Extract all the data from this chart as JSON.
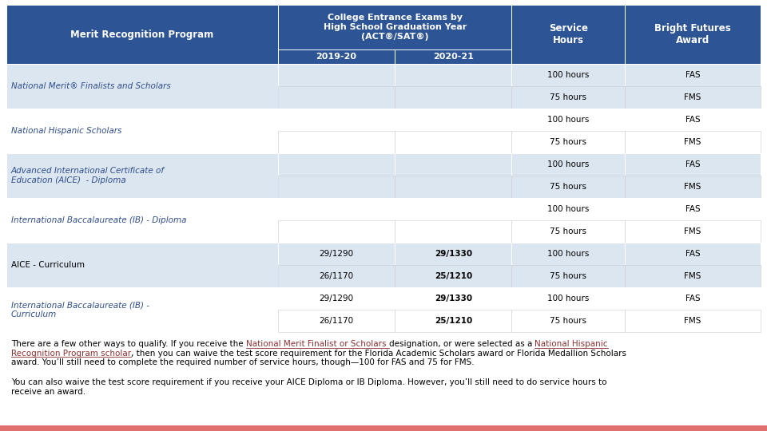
{
  "header_bg": "#2d5494",
  "header_text_color": "#ffffff",
  "row_bg_light": "#dce6f1",
  "row_bg_white": "#ffffff",
  "italic_color": "#2e4d8c",
  "normal_color": "#000000",
  "link_color": "#8b3030",
  "bottom_bar_color": "#e07070",
  "col1_header": "Merit Recognition Program",
  "col_exam_header": "College Entrance Exams by\nHigh School Graduation Year\n(ACT®/SAT®)",
  "col4_header": "Service\nHours",
  "col5_header": "Bright Futures\nAward",
  "year1": "2019-20",
  "year2": "2020-21",
  "rows": [
    {
      "program": "National Merit® Finalists and Scholars",
      "italic": true,
      "score1_row1": "",
      "score2_row1": "",
      "service1": "100 hours",
      "award1": "FAS",
      "score1_row2": "",
      "score2_row2": "",
      "service2": "75 hours",
      "award2": "FMS"
    },
    {
      "program": "National Hispanic Scholars",
      "italic": true,
      "score1_row1": "",
      "score2_row1": "",
      "service1": "100 hours",
      "award1": "FAS",
      "score1_row2": "",
      "score2_row2": "",
      "service2": "75 hours",
      "award2": "FMS"
    },
    {
      "program": "Advanced International Certificate of\nEducation (AICE)  - Diploma",
      "italic": true,
      "score1_row1": "",
      "score2_row1": "",
      "service1": "100 hours",
      "award1": "FAS",
      "score1_row2": "",
      "score2_row2": "",
      "service2": "75 hours",
      "award2": "FMS"
    },
    {
      "program": "International Baccalaureate (IB) - Diploma",
      "italic": true,
      "score1_row1": "",
      "score2_row1": "",
      "service1": "100 hours",
      "award1": "FAS",
      "score1_row2": "",
      "score2_row2": "",
      "service2": "75 hours",
      "award2": "FMS"
    },
    {
      "program": "AICE - Curriculum",
      "italic": false,
      "score1_row1": "29/1290",
      "score2_row1": "29/1330",
      "service1": "100 hours",
      "award1": "FAS",
      "score1_row2": "26/1170",
      "score2_row2": "25/1210",
      "service2": "75 hours",
      "award2": "FMS"
    },
    {
      "program": "International Baccalaureate (IB) -\nCurriculum",
      "italic": true,
      "score1_row1": "29/1290",
      "score2_row1": "29/1330",
      "service1": "100 hours",
      "award1": "FAS",
      "score1_row2": "26/1170",
      "score2_row2": "25/1210",
      "service2": "75 hours",
      "award2": "FMS"
    }
  ]
}
